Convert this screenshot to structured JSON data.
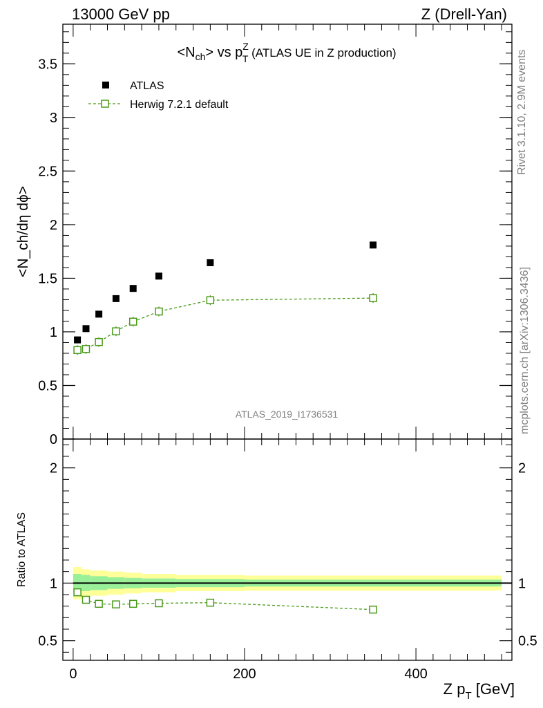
{
  "header": {
    "left": "13000 GeV pp",
    "right": "Z (Drell-Yan)"
  },
  "side": {
    "rivet": "Rivet 3.1.10,  2.9M events",
    "mcplots": "mcplots.cern.ch [arXiv:1306.3436]"
  },
  "watermark": "ATLAS_2019_I1736531",
  "colors": {
    "atlas": "#000000",
    "herwig": "#4a9a1a",
    "band_inner": "#99f099",
    "band_outer": "#ffff99"
  },
  "chart_data": [
    {
      "type": "scatter",
      "title_parts": {
        "main": "<N",
        "sub": "ch",
        "vs": "> vs p",
        "sup": "Z",
        "sub2": "T",
        "rest": " (ATLAS UE in Z production)"
      },
      "ylabel": "<N_ch/dη dϕ>",
      "xlim": [
        -12,
        512
      ],
      "ylim": [
        0,
        3.87
      ],
      "yticks": [
        0,
        0.5,
        1,
        1.5,
        2,
        2.5,
        3,
        3.5
      ],
      "ytick_labels": [
        "0",
        "0.5",
        "1",
        "1.5",
        "2",
        "2.5",
        "3",
        "3.5"
      ],
      "legend": {
        "position": "top-left",
        "entries": [
          "ATLAS",
          "Herwig 7.2.1 default"
        ]
      },
      "series": [
        {
          "name": "ATLAS",
          "marker": "filled-square",
          "x": [
            5,
            15,
            30,
            50,
            70,
            100,
            160,
            350
          ],
          "y": [
            0.925,
            1.03,
            1.165,
            1.31,
            1.405,
            1.52,
            1.645,
            1.81
          ]
        },
        {
          "name": "Herwig 7.2.1 default",
          "marker": "open-square-dashed",
          "x": [
            5,
            15,
            30,
            50,
            70,
            100,
            160,
            350
          ],
          "y": [
            0.83,
            0.84,
            0.905,
            1.005,
            1.095,
            1.19,
            1.295,
            1.315
          ]
        }
      ]
    },
    {
      "type": "line",
      "ylabel": "Ratio to ATLAS",
      "xlabel": "Z p_T [GeV]",
      "xlim": [
        -12,
        512
      ],
      "ylim": [
        0.33,
        2.25
      ],
      "xticks": [
        0,
        200,
        400
      ],
      "xtick_labels": [
        "0",
        "200",
        "400"
      ],
      "yticks": [
        0.5,
        1,
        2
      ],
      "ytick_labels": [
        "0.5",
        "1",
        "2"
      ],
      "bands": {
        "edges": [
          0,
          10,
          20,
          40,
          60,
          80,
          120,
          200,
          500
        ],
        "outer": [
          0.14,
          0.12,
          0.11,
          0.1,
          0.09,
          0.08,
          0.07,
          0.065
        ],
        "inner": [
          0.08,
          0.07,
          0.06,
          0.05,
          0.045,
          0.04,
          0.035,
          0.03
        ]
      },
      "series": [
        {
          "name": "Herwig 7.2.1 default / ATLAS",
          "x": [
            5,
            15,
            30,
            50,
            70,
            100,
            160,
            350
          ],
          "y": [
            0.92,
            0.855,
            0.82,
            0.815,
            0.82,
            0.825,
            0.83,
            0.77
          ]
        }
      ]
    }
  ]
}
